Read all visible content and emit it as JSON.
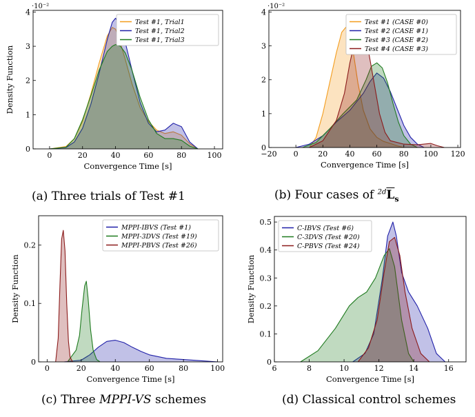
{
  "panels": [
    {
      "caption": "(a) Three trials of Test #1",
      "chart_data": {
        "type": "area",
        "title": "",
        "xlabel": "Convergence Time [s]",
        "ylabel": "Density Function",
        "y_multiplier": "·10⁻²",
        "xlim": [
          -10,
          105
        ],
        "ylim": [
          0,
          4.05
        ],
        "xticks": [
          0,
          20,
          40,
          60,
          80,
          100
        ],
        "yticks": [
          0,
          1,
          2,
          3,
          4
        ],
        "legend_position": "top-right",
        "series": [
          {
            "name": "Test #1, Trial1",
            "color": "#f39c1c",
            "x": [
              0,
              10,
              15,
              20,
              25,
              30,
              35,
              38,
              40,
              43,
              46,
              50,
              55,
              60,
              65,
              70,
              75,
              80,
              85,
              90
            ],
            "y": [
              0,
              0.07,
              0.3,
              0.8,
              1.6,
              2.5,
              3.3,
              3.55,
              3.5,
              3.1,
              2.6,
              1.9,
              1.2,
              0.8,
              0.55,
              0.45,
              0.5,
              0.4,
              0.15,
              0
            ]
          },
          {
            "name": "Test #1, Trial2",
            "color": "#1f1fa8",
            "x": [
              0,
              10,
              15,
              20,
              25,
              30,
              35,
              38,
              40,
              43,
              46,
              50,
              55,
              60,
              65,
              70,
              75,
              80,
              85,
              90
            ],
            "y": [
              0,
              0.04,
              0.2,
              0.6,
              1.3,
              2.2,
              3.2,
              3.7,
              3.82,
              3.6,
              3.1,
              2.3,
              1.35,
              0.75,
              0.5,
              0.55,
              0.75,
              0.65,
              0.2,
              0
            ]
          },
          {
            "name": "Test #1, Trial3",
            "color": "#1e7a1e",
            "x": [
              0,
              10,
              15,
              20,
              25,
              30,
              35,
              38,
              40,
              43,
              46,
              50,
              55,
              60,
              65,
              70,
              75,
              80,
              85,
              90
            ],
            "y": [
              0,
              0.05,
              0.3,
              0.85,
              1.55,
              2.3,
              2.85,
              3.0,
              3.05,
              3.0,
              2.8,
              2.3,
              1.5,
              0.85,
              0.45,
              0.3,
              0.3,
              0.25,
              0.08,
              0
            ]
          }
        ]
      }
    },
    {
      "caption_prefix": "(b) Four cases of ",
      "caption_sup": "2d",
      "caption_symbol": "L",
      "caption_sub": "s",
      "chart_data": {
        "type": "area",
        "title": "",
        "xlabel": "Convergence Time [s]",
        "ylabel": "",
        "y_multiplier": "·10⁻²",
        "xlim": [
          -20,
          122
        ],
        "ylim": [
          0,
          4.05
        ],
        "xticks": [
          -20,
          0,
          20,
          40,
          60,
          80,
          100,
          120
        ],
        "yticks": [
          0,
          1,
          2,
          3,
          4
        ],
        "legend_position": "top-right",
        "series": [
          {
            "name": "Test #1 (CASE #0)",
            "color": "#f39c1c",
            "x": [
              10,
              15,
              20,
              25,
              30,
              34,
              37,
              40,
              43,
              46,
              50,
              55,
              60,
              65,
              70,
              75,
              80
            ],
            "y": [
              0,
              0.3,
              1.0,
              1.9,
              2.8,
              3.4,
              3.55,
              3.3,
              2.7,
              1.9,
              1.1,
              0.55,
              0.3,
              0.18,
              0.12,
              0.05,
              0
            ]
          },
          {
            "name": "Test #2 (CASE #1)",
            "color": "#1f1fa8",
            "x": [
              0,
              10,
              20,
              30,
              40,
              50,
              55,
              60,
              65,
              70,
              75,
              80,
              85,
              90,
              95
            ],
            "y": [
              0,
              0.1,
              0.35,
              0.75,
              1.1,
              1.6,
              1.95,
              2.2,
              2.05,
              1.65,
              1.15,
              0.65,
              0.3,
              0.1,
              0
            ]
          },
          {
            "name": "Test #3 (CASE #2)",
            "color": "#1e7a1e",
            "x": [
              5,
              15,
              25,
              35,
              45,
              52,
              56,
              60,
              64,
              68,
              72,
              76,
              80,
              85,
              90
            ],
            "y": [
              0,
              0.15,
              0.55,
              1.0,
              1.4,
              2.0,
              2.4,
              2.5,
              2.35,
              1.9,
              1.3,
              0.75,
              0.35,
              0.1,
              0
            ]
          },
          {
            "name": "Test #4 (CASE #3)",
            "color": "#8b1a1a",
            "x": [
              10,
              20,
              30,
              36,
              40,
              44,
              47,
              50,
              54,
              58,
              62,
              66,
              70,
              80,
              90,
              95,
              100,
              105,
              110
            ],
            "y": [
              0,
              0.2,
              0.8,
              1.6,
              2.5,
              3.2,
              3.5,
              3.35,
              2.8,
              1.9,
              1.0,
              0.45,
              0.2,
              0.1,
              0.08,
              0.1,
              0.12,
              0.05,
              0
            ]
          }
        ]
      }
    },
    {
      "caption_prefix": "(c) Three ",
      "caption_em": "MPPI-VS",
      "caption_suffix": " schemes",
      "chart_data": {
        "type": "area",
        "title": "",
        "xlabel": "Convergence Time [s]",
        "ylabel": "Density Function",
        "xlim": [
          -5,
          103
        ],
        "ylim": [
          0,
          0.25
        ],
        "xticks": [
          0,
          20,
          40,
          60,
          80,
          100
        ],
        "yticks": [
          0,
          0.1,
          0.2
        ],
        "legend_position": "top-right",
        "series": [
          {
            "name": "MPPI-IBVS (Test #1)",
            "color": "#1f1fa8",
            "x": [
              10,
              20,
              25,
              30,
              35,
              40,
              45,
              50,
              55,
              60,
              70,
              80,
              90,
              100
            ],
            "y": [
              0,
              0.003,
              0.012,
              0.025,
              0.035,
              0.037,
              0.033,
              0.025,
              0.018,
              0.012,
              0.006,
              0.004,
              0.002,
              0
            ]
          },
          {
            "name": "MPPI-3DVS (Test #19)",
            "color": "#1e7a1e",
            "x": [
              12,
              15,
              17,
              19,
              20.5,
              22,
              23,
              24,
              25.5,
              27,
              29,
              31
            ],
            "y": [
              0,
              0.012,
              0.02,
              0.045,
              0.09,
              0.13,
              0.138,
              0.11,
              0.055,
              0.02,
              0.004,
              0
            ]
          },
          {
            "name": "MPPI-PBVS (Test #26)",
            "color": "#8b1a1a",
            "x": [
              5,
              6.5,
              7.5,
              8.5,
              9.5,
              10.5,
              11.5,
              12.5,
              13.5,
              15
            ],
            "y": [
              0,
              0.04,
              0.13,
              0.21,
              0.225,
              0.19,
              0.1,
              0.035,
              0.008,
              0
            ]
          }
        ]
      }
    },
    {
      "caption": "(d) Classical control schemes",
      "chart_data": {
        "type": "area",
        "title": "",
        "xlabel": "Convergence Time [s]",
        "ylabel": "Density Function",
        "xlim": [
          6,
          17
        ],
        "ylim": [
          0,
          0.52
        ],
        "xticks": [
          6,
          8,
          10,
          12,
          14,
          16
        ],
        "yticks": [
          0,
          0.1,
          0.2,
          0.3,
          0.4,
          0.5
        ],
        "legend_position": "top-left",
        "series": [
          {
            "name": "C-IBVS (Test #6)",
            "color": "#1f1fa8",
            "x": [
              10.5,
              11.2,
              11.7,
              12.2,
              12.5,
              12.8,
              13.0,
              13.3,
              13.7,
              14.2,
              14.8,
              15.3,
              15.8
            ],
            "y": [
              0,
              0.03,
              0.1,
              0.3,
              0.45,
              0.5,
              0.45,
              0.32,
              0.25,
              0.2,
              0.12,
              0.03,
              0
            ]
          },
          {
            "name": "C-3DVS (Test #20)",
            "color": "#1e7a1e",
            "x": [
              7.5,
              8.5,
              9.5,
              10.3,
              10.8,
              11.3,
              11.8,
              12.3,
              12.6,
              12.9,
              13.3,
              13.7,
              14.0
            ],
            "y": [
              0,
              0.04,
              0.12,
              0.2,
              0.23,
              0.25,
              0.3,
              0.38,
              0.405,
              0.34,
              0.15,
              0.03,
              0
            ]
          },
          {
            "name": "C-PBVS (Test #24)",
            "color": "#8b1a1a",
            "x": [
              10.8,
              11.4,
              11.9,
              12.3,
              12.6,
              12.9,
              13.2,
              13.5,
              13.9,
              14.4,
              14.9
            ],
            "y": [
              0,
              0.05,
              0.15,
              0.32,
              0.43,
              0.445,
              0.38,
              0.25,
              0.12,
              0.03,
              0
            ]
          }
        ]
      }
    }
  ]
}
